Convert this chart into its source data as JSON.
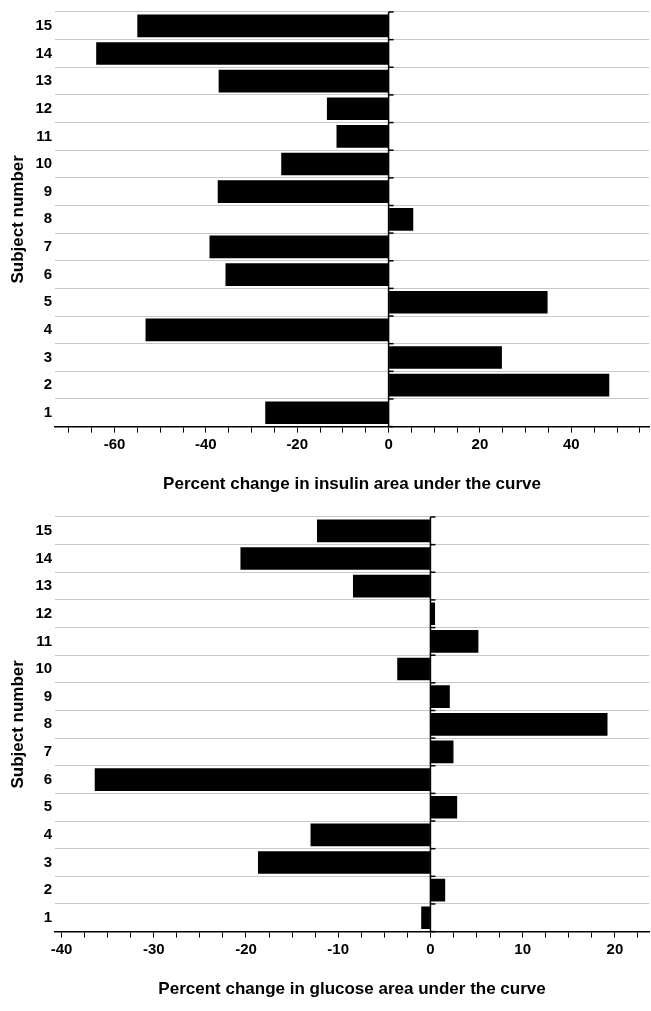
{
  "chart_data": [
    {
      "type": "bar",
      "orientation": "horizontal",
      "categories": [
        "15",
        "14",
        "13",
        "12",
        "11",
        "10",
        "9",
        "8",
        "7",
        "6",
        "5",
        "4",
        "3",
        "2",
        "1"
      ],
      "values": [
        -55,
        -64,
        -37.2,
        -13.5,
        -11.4,
        -23.5,
        -37.4,
        5.4,
        -39.2,
        -35.7,
        34.8,
        -53.2,
        24.8,
        48.3,
        -27
      ],
      "color": "#000000",
      "xlabel": "Percent change in insulin area under the curve",
      "ylabel": "Subject number",
      "xlim": [
        -73,
        57
      ],
      "xticks": [
        {
          "value": -70,
          "label": null
        },
        {
          "value": -65,
          "label": null
        },
        -60,
        {
          "value": -55,
          "label": null
        },
        {
          "value": -50,
          "label": null
        },
        {
          "value": -45,
          "label": null
        },
        -40,
        {
          "value": -35,
          "label": null
        },
        {
          "value": -30,
          "label": null
        },
        {
          "value": -25,
          "label": null
        },
        -20,
        {
          "value": -15,
          "label": null
        },
        {
          "value": -10,
          "label": null
        },
        {
          "value": -5,
          "label": null
        },
        0,
        {
          "value": 5,
          "label": null
        },
        {
          "value": 10,
          "label": null
        },
        {
          "value": 15,
          "label": null
        },
        20,
        {
          "value": 25,
          "label": null
        },
        {
          "value": 30,
          "label": null
        },
        {
          "value": 35,
          "label": null
        },
        40,
        {
          "value": 45,
          "label": null
        },
        {
          "value": 50,
          "label": null
        },
        {
          "value": 55,
          "label": null
        }
      ],
      "grid": "y",
      "legend": false
    },
    {
      "type": "bar",
      "orientation": "horizontal",
      "categories": [
        "15",
        "14",
        "13",
        "12",
        "11",
        "10",
        "9",
        "8",
        "7",
        "6",
        "5",
        "4",
        "3",
        "2",
        "1"
      ],
      "values": [
        -12.3,
        -20.6,
        -8.4,
        0.5,
        5.2,
        -3.6,
        2.1,
        19.2,
        2.5,
        -36.4,
        2.9,
        -13,
        -18.7,
        1.6,
        -1
      ],
      "color": "#000000",
      "xlabel": "Percent change in glucose area under the curve",
      "ylabel": "Subject number",
      "xlim": [
        -40.7,
        23.7
      ],
      "xticks": [
        -40,
        {
          "value": -37.5,
          "label": null
        },
        {
          "value": -35,
          "label": null
        },
        {
          "value": -32.5,
          "label": null
        },
        -30,
        {
          "value": -27.5,
          "label": null
        },
        {
          "value": -25,
          "label": null
        },
        {
          "value": -22.5,
          "label": null
        },
        -20,
        {
          "value": -17.5,
          "label": null
        },
        {
          "value": -15,
          "label": null
        },
        {
          "value": -12.5,
          "label": null
        },
        -10,
        {
          "value": -7.5,
          "label": null
        },
        {
          "value": -5,
          "label": null
        },
        {
          "value": -2.5,
          "label": null
        },
        0,
        {
          "value": 2.5,
          "label": null
        },
        {
          "value": 5,
          "label": null
        },
        {
          "value": 7.5,
          "label": null
        },
        10,
        {
          "value": 12.5,
          "label": null
        },
        {
          "value": 15,
          "label": null
        },
        {
          "value": 17.5,
          "label": null
        },
        20,
        {
          "value": 22.5,
          "label": null
        }
      ],
      "grid": "y",
      "legend": false
    }
  ]
}
